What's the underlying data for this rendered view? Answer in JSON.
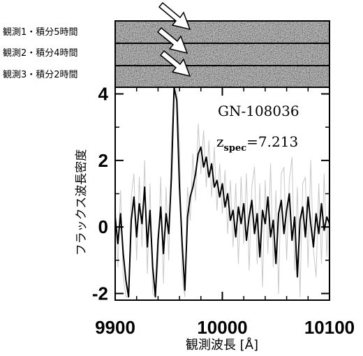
{
  "chart_data": {
    "type": "line",
    "strip_labels": [
      "観測1・積分5時間",
      "観測2・積分4時間",
      "観測3・積分2時間"
    ],
    "annotations": {
      "object": "GN-108036",
      "z": "z",
      "z_sub": "spec",
      "z_value": "=7.213"
    },
    "xlabel": "観測波長 [Å]",
    "ylabel": "フラックス波長密度",
    "xlim": [
      9900,
      10100
    ],
    "ylim": [
      -2.2,
      4.2
    ],
    "xticks": [
      9900,
      10000,
      10100
    ],
    "yticks": [
      -2,
      0,
      2,
      4
    ],
    "xminorticks": [
      9920,
      9940,
      9960,
      9980,
      10020,
      10040,
      10060,
      10080
    ],
    "yminorticks": [
      -1,
      1,
      3
    ],
    "x": [
      9900,
      9902.5,
      9905,
      9907.5,
      9910,
      9912.5,
      9915,
      9917.5,
      9920,
      9922.5,
      9925,
      9927.5,
      9930,
      9932.5,
      9935,
      9937.5,
      9940,
      9942.5,
      9945,
      9947.5,
      9950,
      9952.5,
      9955,
      9957.5,
      9960,
      9962.5,
      9965,
      9967.5,
      9970,
      9972.5,
      9975,
      9977.5,
      9980,
      9982.5,
      9985,
      9987.5,
      9990,
      9992.5,
      9995,
      9997.5,
      10000,
      10002.5,
      10005,
      10007.5,
      10010,
      10012.5,
      10015,
      10017.5,
      10020,
      10022.5,
      10025,
      10027.5,
      10030,
      10032.5,
      10035,
      10037.5,
      10040,
      10042.5,
      10045,
      10047.5,
      10050,
      10052.5,
      10055,
      10057.5,
      10060,
      10062.5,
      10065,
      10067.5,
      10070,
      10072.5,
      10075,
      10077.5,
      10080,
      10082.5,
      10085,
      10087.5,
      10090,
      10092.5,
      10095,
      10097.5,
      10100
    ],
    "series": [
      {
        "color": "#c8c8c8",
        "width": 1,
        "values": [
          0.8,
          -1.2,
          1.1,
          -1.5,
          -2.1,
          -2.1,
          0.9,
          1.6,
          -1.0,
          1.5,
          -0.6,
          2.0,
          -1.4,
          1.3,
          -2.0,
          -2.1,
          -1.1,
          1.5,
          -1.7,
          1.2,
          -1.0,
          2.6,
          4.2,
          4.2,
          2.5,
          -1.5,
          -2.1,
          1.2,
          0.2,
          2.2,
          0.8,
          3.1,
          1.6,
          2.9,
          1.2,
          2.6,
          0.9,
          2.4,
          0.5,
          1.9,
          0.4,
          1.7,
          -0.2,
          1.4,
          -0.6,
          1.3,
          -1.1,
          1.5,
          -0.5,
          1.6,
          -1.3,
          1.2,
          1.8,
          -1.1,
          1.3,
          -1.8,
          1.4,
          -0.8,
          1.9,
          -1.2,
          1.1,
          -2.0,
          1.6,
          1.8,
          -1.0,
          1.4,
          2.1,
          -1.3,
          1.2,
          -2.1,
          1.3,
          1.5,
          -1.2,
          2.0,
          -0.7,
          -1.5,
          1.3,
          -1.1,
          1.6,
          -0.9,
          1.2
        ]
      },
      {
        "color": "#000000",
        "width": 2,
        "values": [
          0.3,
          -0.5,
          0.4,
          -0.8,
          -1.6,
          -2.1,
          0.2,
          0.9,
          -0.3,
          0.7,
          0.1,
          1.2,
          -0.6,
          0.5,
          -1.2,
          -2.1,
          -0.4,
          0.6,
          -0.8,
          0.4,
          -0.2,
          1.5,
          4.2,
          3.8,
          1.2,
          -0.5,
          -1.9,
          0.3,
          0.9,
          1.2,
          1.6,
          2.2,
          2.4,
          1.8,
          2.1,
          1.5,
          1.9,
          1.2,
          1.4,
          0.9,
          1.3,
          0.6,
          1.0,
          0.2,
          0.5,
          -0.3,
          0.6,
          0.1,
          0.7,
          -0.4,
          0.3,
          0.8,
          -0.2,
          0.4,
          -0.9,
          0.5,
          0.1,
          0.9,
          -0.3,
          0.2,
          -1.1,
          0.4,
          0.8,
          -0.2,
          0.5,
          1.0,
          -0.4,
          0.3,
          -1.5,
          0.2,
          0.6,
          -0.3,
          0.9,
          0.1,
          -0.6,
          0.4,
          -0.2,
          0.7,
          -0.1,
          0.3,
          0.1
        ]
      }
    ]
  }
}
